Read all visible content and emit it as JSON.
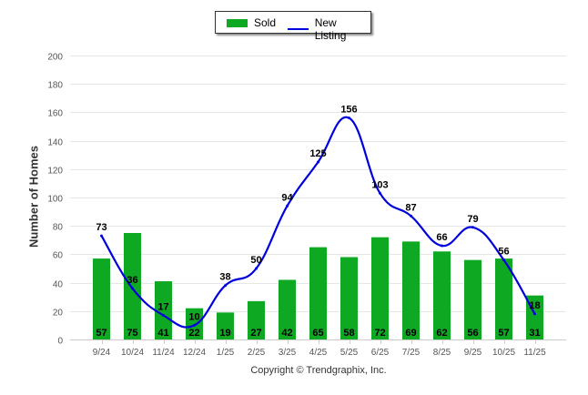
{
  "chart_data": {
    "type": "bar",
    "title": "",
    "xlabel": "",
    "ylabel": "Number of Homes",
    "ylim": [
      0,
      200
    ],
    "yticks": [
      0,
      20,
      40,
      60,
      80,
      100,
      120,
      140,
      160,
      180,
      200
    ],
    "grid": true,
    "legend_position": "top-center",
    "categories": [
      "9/24",
      "10/24",
      "11/24",
      "12/24",
      "1/25",
      "2/25",
      "3/25",
      "4/25",
      "5/25",
      "6/25",
      "7/25",
      "8/25",
      "9/25",
      "10/25",
      "11/25"
    ],
    "series": [
      {
        "name": "Sold",
        "type": "bar",
        "color": "#0ea823",
        "values": [
          57,
          75,
          41,
          22,
          19,
          27,
          42,
          65,
          58,
          72,
          69,
          62,
          56,
          57,
          31
        ]
      },
      {
        "name": "New Listing",
        "type": "line",
        "color": "#0000dd",
        "values": [
          73,
          36,
          17,
          10,
          38,
          50,
          94,
          125,
          156,
          103,
          87,
          66,
          79,
          56,
          18
        ]
      }
    ]
  },
  "legend": {
    "sold_label": "Sold",
    "new_listing_label": "New Listing"
  },
  "footer": {
    "copyright": "Copyright © Trendgraphix, Inc."
  }
}
